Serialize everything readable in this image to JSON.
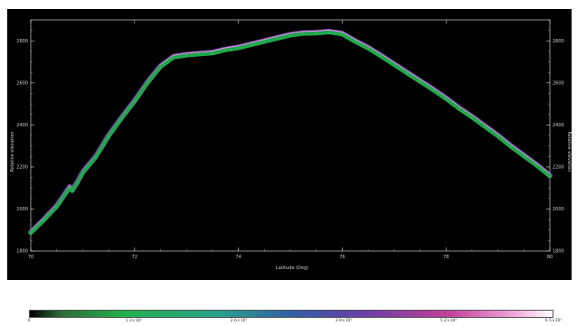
{
  "chart_data": {
    "type": "line",
    "title": "",
    "xlabel": "Latitude (Deg)",
    "ylabel": "Relative elevation",
    "ylabel_right": "Relative elevation",
    "xlim": [
      70,
      80
    ],
    "ylim": [
      1800,
      2900
    ],
    "x_ticks": [
      70,
      72,
      74,
      76,
      78,
      80
    ],
    "y_ticks": [
      1800,
      2000,
      2200,
      2400,
      2600,
      2800
    ],
    "grid": false,
    "series": [
      {
        "x": [
          70.0,
          70.25,
          70.5,
          70.75,
          70.8,
          70.9,
          71.0,
          71.25,
          71.5,
          71.75,
          72.0,
          72.25,
          72.5,
          72.75,
          73.0,
          73.25,
          73.5,
          73.75,
          74.0,
          74.25,
          74.5,
          74.75,
          75.0,
          75.25,
          75.5,
          75.75,
          76.0,
          76.25,
          76.5,
          76.75,
          77.0,
          77.25,
          77.5,
          77.75,
          78.0,
          78.25,
          78.5,
          78.75,
          79.0,
          79.25,
          79.5,
          79.75,
          80.0
        ],
        "y": [
          1890,
          1950,
          2015,
          2105,
          2090,
          2130,
          2175,
          2250,
          2350,
          2435,
          2515,
          2605,
          2680,
          2725,
          2735,
          2740,
          2745,
          2760,
          2770,
          2785,
          2800,
          2815,
          2830,
          2838,
          2840,
          2845,
          2835,
          2800,
          2768,
          2730,
          2690,
          2650,
          2610,
          2570,
          2528,
          2482,
          2440,
          2395,
          2350,
          2300,
          2255,
          2210,
          2160
        ]
      }
    ],
    "colorbar": {
      "ticks": [
        "0",
        "1.3×10⁵",
        "2.6×10⁵",
        "3.9×10⁵",
        "5.2×10⁵",
        "6.5×10⁵"
      ],
      "colors": [
        "#000000",
        "#22b14c",
        "#2f5fa6",
        "#6a3ea8",
        "#c2409a",
        "#ffffff"
      ]
    },
    "colors": {
      "background": "#000000",
      "axis": "#cfcfcf",
      "line_core": "#1fa94a",
      "line_halo": "#7a4fb0",
      "line_highlight": "#d8a0e0"
    }
  }
}
